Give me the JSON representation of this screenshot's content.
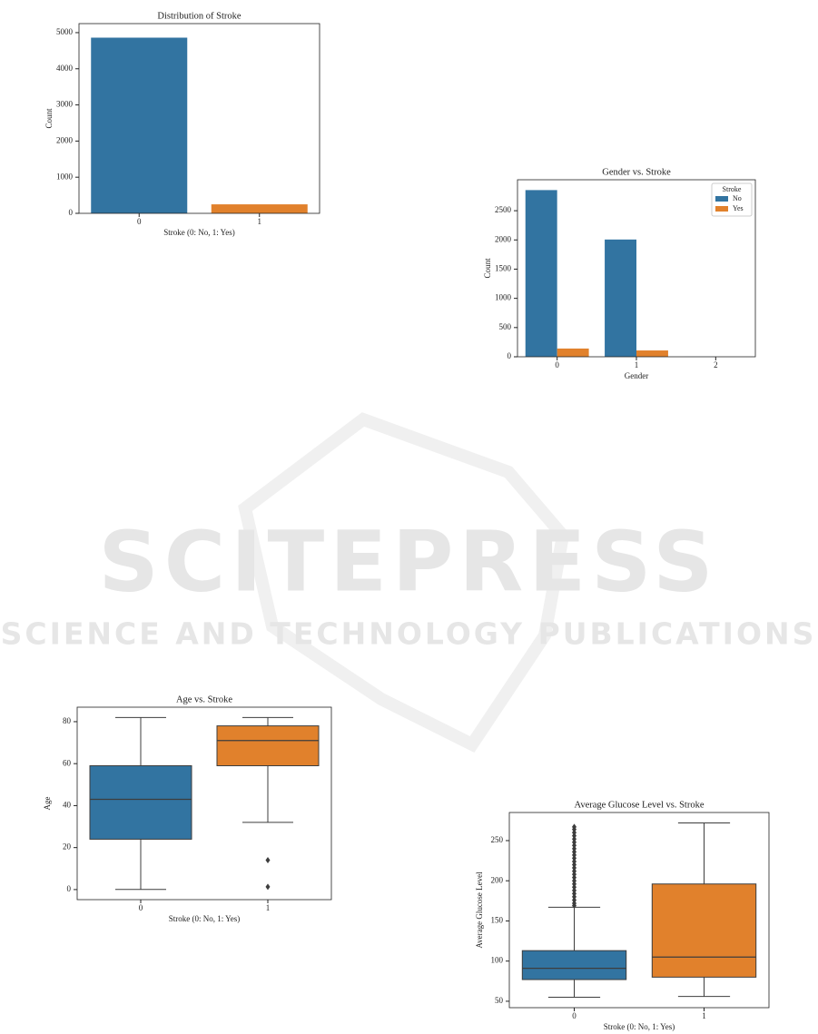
{
  "watermark": {
    "title": "SCITEPRESS",
    "subtitle": "SCIENCE AND TECHNOLOGY PUBLICATIONS"
  },
  "chart_data": [
    {
      "type": "bar",
      "title": "Distribution of Stroke",
      "x_label": "Stroke (0: No, 1: Yes)",
      "y_label": "Count",
      "categories": [
        "0",
        "1"
      ],
      "values": [
        4861,
        249
      ],
      "colors": [
        "#3274a1",
        "#e1812c"
      ],
      "ylim": [
        0,
        5250
      ],
      "yticks": [
        0,
        1000,
        2000,
        3000,
        4000,
        5000
      ]
    },
    {
      "type": "bar",
      "title": "Gender vs. Stroke",
      "x_label": "Gender",
      "y_label": "Count",
      "categories": [
        "0",
        "1",
        "2"
      ],
      "series": [
        {
          "name": "No",
          "color": "#3274a1",
          "values": [
            2853,
            2007,
            1
          ]
        },
        {
          "name": "Yes",
          "color": "#e1812c",
          "values": [
            141,
            108,
            0
          ]
        }
      ],
      "legend": "upper right",
      "legend_title": "Stroke",
      "ylim": [
        0,
        3030
      ],
      "yticks": [
        0,
        500,
        1000,
        1500,
        2000,
        2500
      ]
    },
    {
      "type": "box",
      "title": "Age vs. Stroke",
      "x_label": "Stroke (0: No, 1: Yes)",
      "y_label": "Age",
      "categories": [
        "0",
        "1"
      ],
      "boxes": [
        {
          "color": "#3274a1",
          "min": 0.08,
          "q1": 24,
          "median": 43,
          "q3": 59,
          "max": 82,
          "outliers": []
        },
        {
          "color": "#e1812c",
          "min": 32,
          "q1": 59,
          "median": 71,
          "q3": 78,
          "max": 82,
          "outliers": [
            14,
            1.32
          ]
        }
      ],
      "ylim": [
        -4.8,
        86.9
      ],
      "yticks": [
        0,
        20,
        40,
        60,
        80
      ]
    },
    {
      "type": "box",
      "title": "Average Glucose Level vs. Stroke",
      "x_label": "Stroke (0: No, 1: Yes)",
      "y_label": "Average Glucose Level",
      "categories": [
        "0",
        "1"
      ],
      "boxes": [
        {
          "color": "#3274a1",
          "min": 55,
          "q1": 77,
          "median": 91,
          "q3": 113,
          "max": 167,
          "outliers": [
            169,
            172,
            176,
            180,
            184,
            188,
            192,
            196,
            200,
            204,
            208,
            212,
            216,
            220,
            224,
            228,
            232,
            236,
            240,
            244,
            248,
            252,
            256,
            260,
            264,
            267
          ]
        },
        {
          "color": "#e1812c",
          "min": 56,
          "q1": 80,
          "median": 105,
          "q3": 196,
          "max": 272,
          "outliers": []
        }
      ],
      "ylim": [
        42,
        285
      ],
      "yticks": [
        50,
        100,
        150,
        200,
        250
      ]
    }
  ]
}
